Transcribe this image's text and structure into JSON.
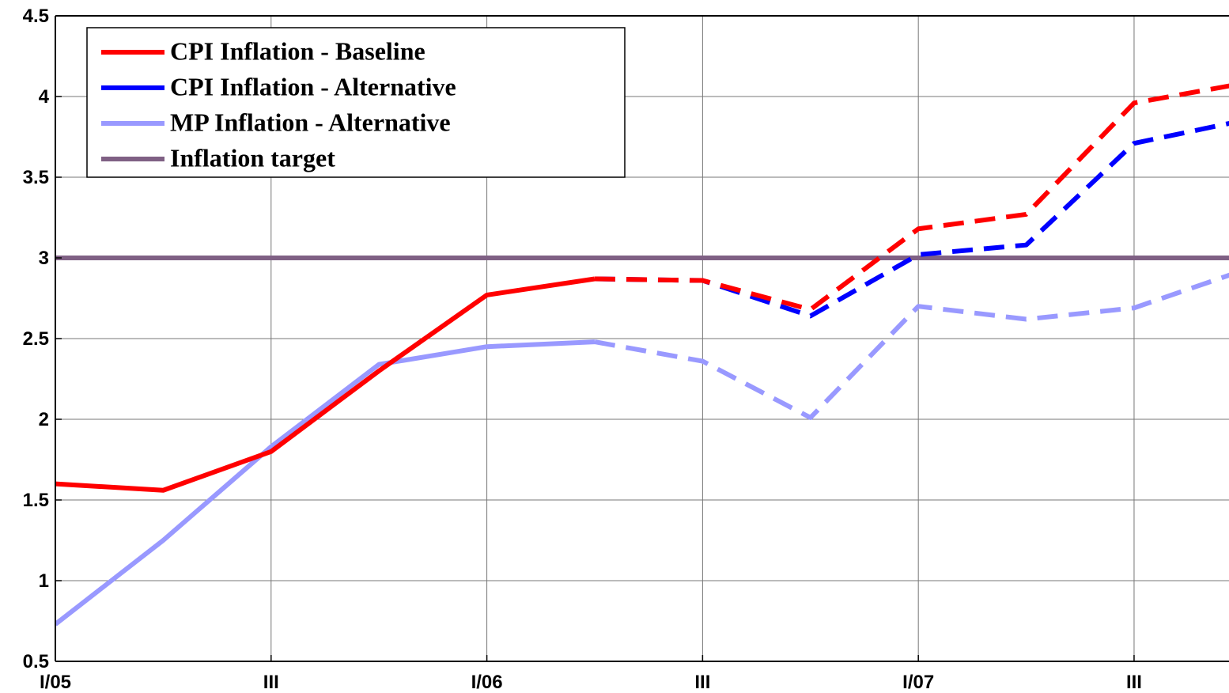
{
  "chart_data": {
    "type": "line",
    "x": [
      0,
      1,
      2,
      3,
      4,
      5,
      6,
      7,
      8,
      9,
      10,
      11
    ],
    "xlim": [
      0,
      10.88
    ],
    "ylim": [
      0.5,
      4.5
    ],
    "xticks": [
      {
        "value": 0,
        "label": "I/05"
      },
      {
        "value": 2,
        "label": "III"
      },
      {
        "value": 4,
        "label": "I/06"
      },
      {
        "value": 6,
        "label": "III"
      },
      {
        "value": 8,
        "label": "I/07"
      },
      {
        "value": 10,
        "label": "III"
      }
    ],
    "yticks": [
      0.5,
      1,
      1.5,
      2,
      2.5,
      3,
      3.5,
      4,
      4.5
    ],
    "grid": true,
    "legend": "upper left",
    "dashed_from": 5,
    "series": [
      {
        "name": "CPI Inflation - Baseline",
        "color": "#ff0000",
        "values": [
          1.6,
          1.56,
          1.8,
          2.3,
          2.77,
          2.87,
          2.86,
          2.68,
          3.18,
          3.27,
          3.96,
          4.08
        ]
      },
      {
        "name": "CPI Inflation - Alternative",
        "color": "#0000ff",
        "values": [
          null,
          null,
          null,
          null,
          null,
          2.87,
          2.86,
          2.64,
          3.02,
          3.08,
          3.71,
          3.85
        ]
      },
      {
        "name": "MP Inflation - Alternative",
        "color": "#9999ff",
        "values": [
          0.73,
          1.25,
          1.83,
          2.34,
          2.45,
          2.48,
          2.36,
          2.01,
          2.7,
          2.62,
          2.69,
          2.92
        ]
      },
      {
        "name": "Inflation target",
        "color": "#7f6084",
        "values": [
          3,
          3,
          3,
          3,
          3,
          3,
          3,
          3,
          3,
          3,
          3,
          3
        ]
      }
    ]
  }
}
